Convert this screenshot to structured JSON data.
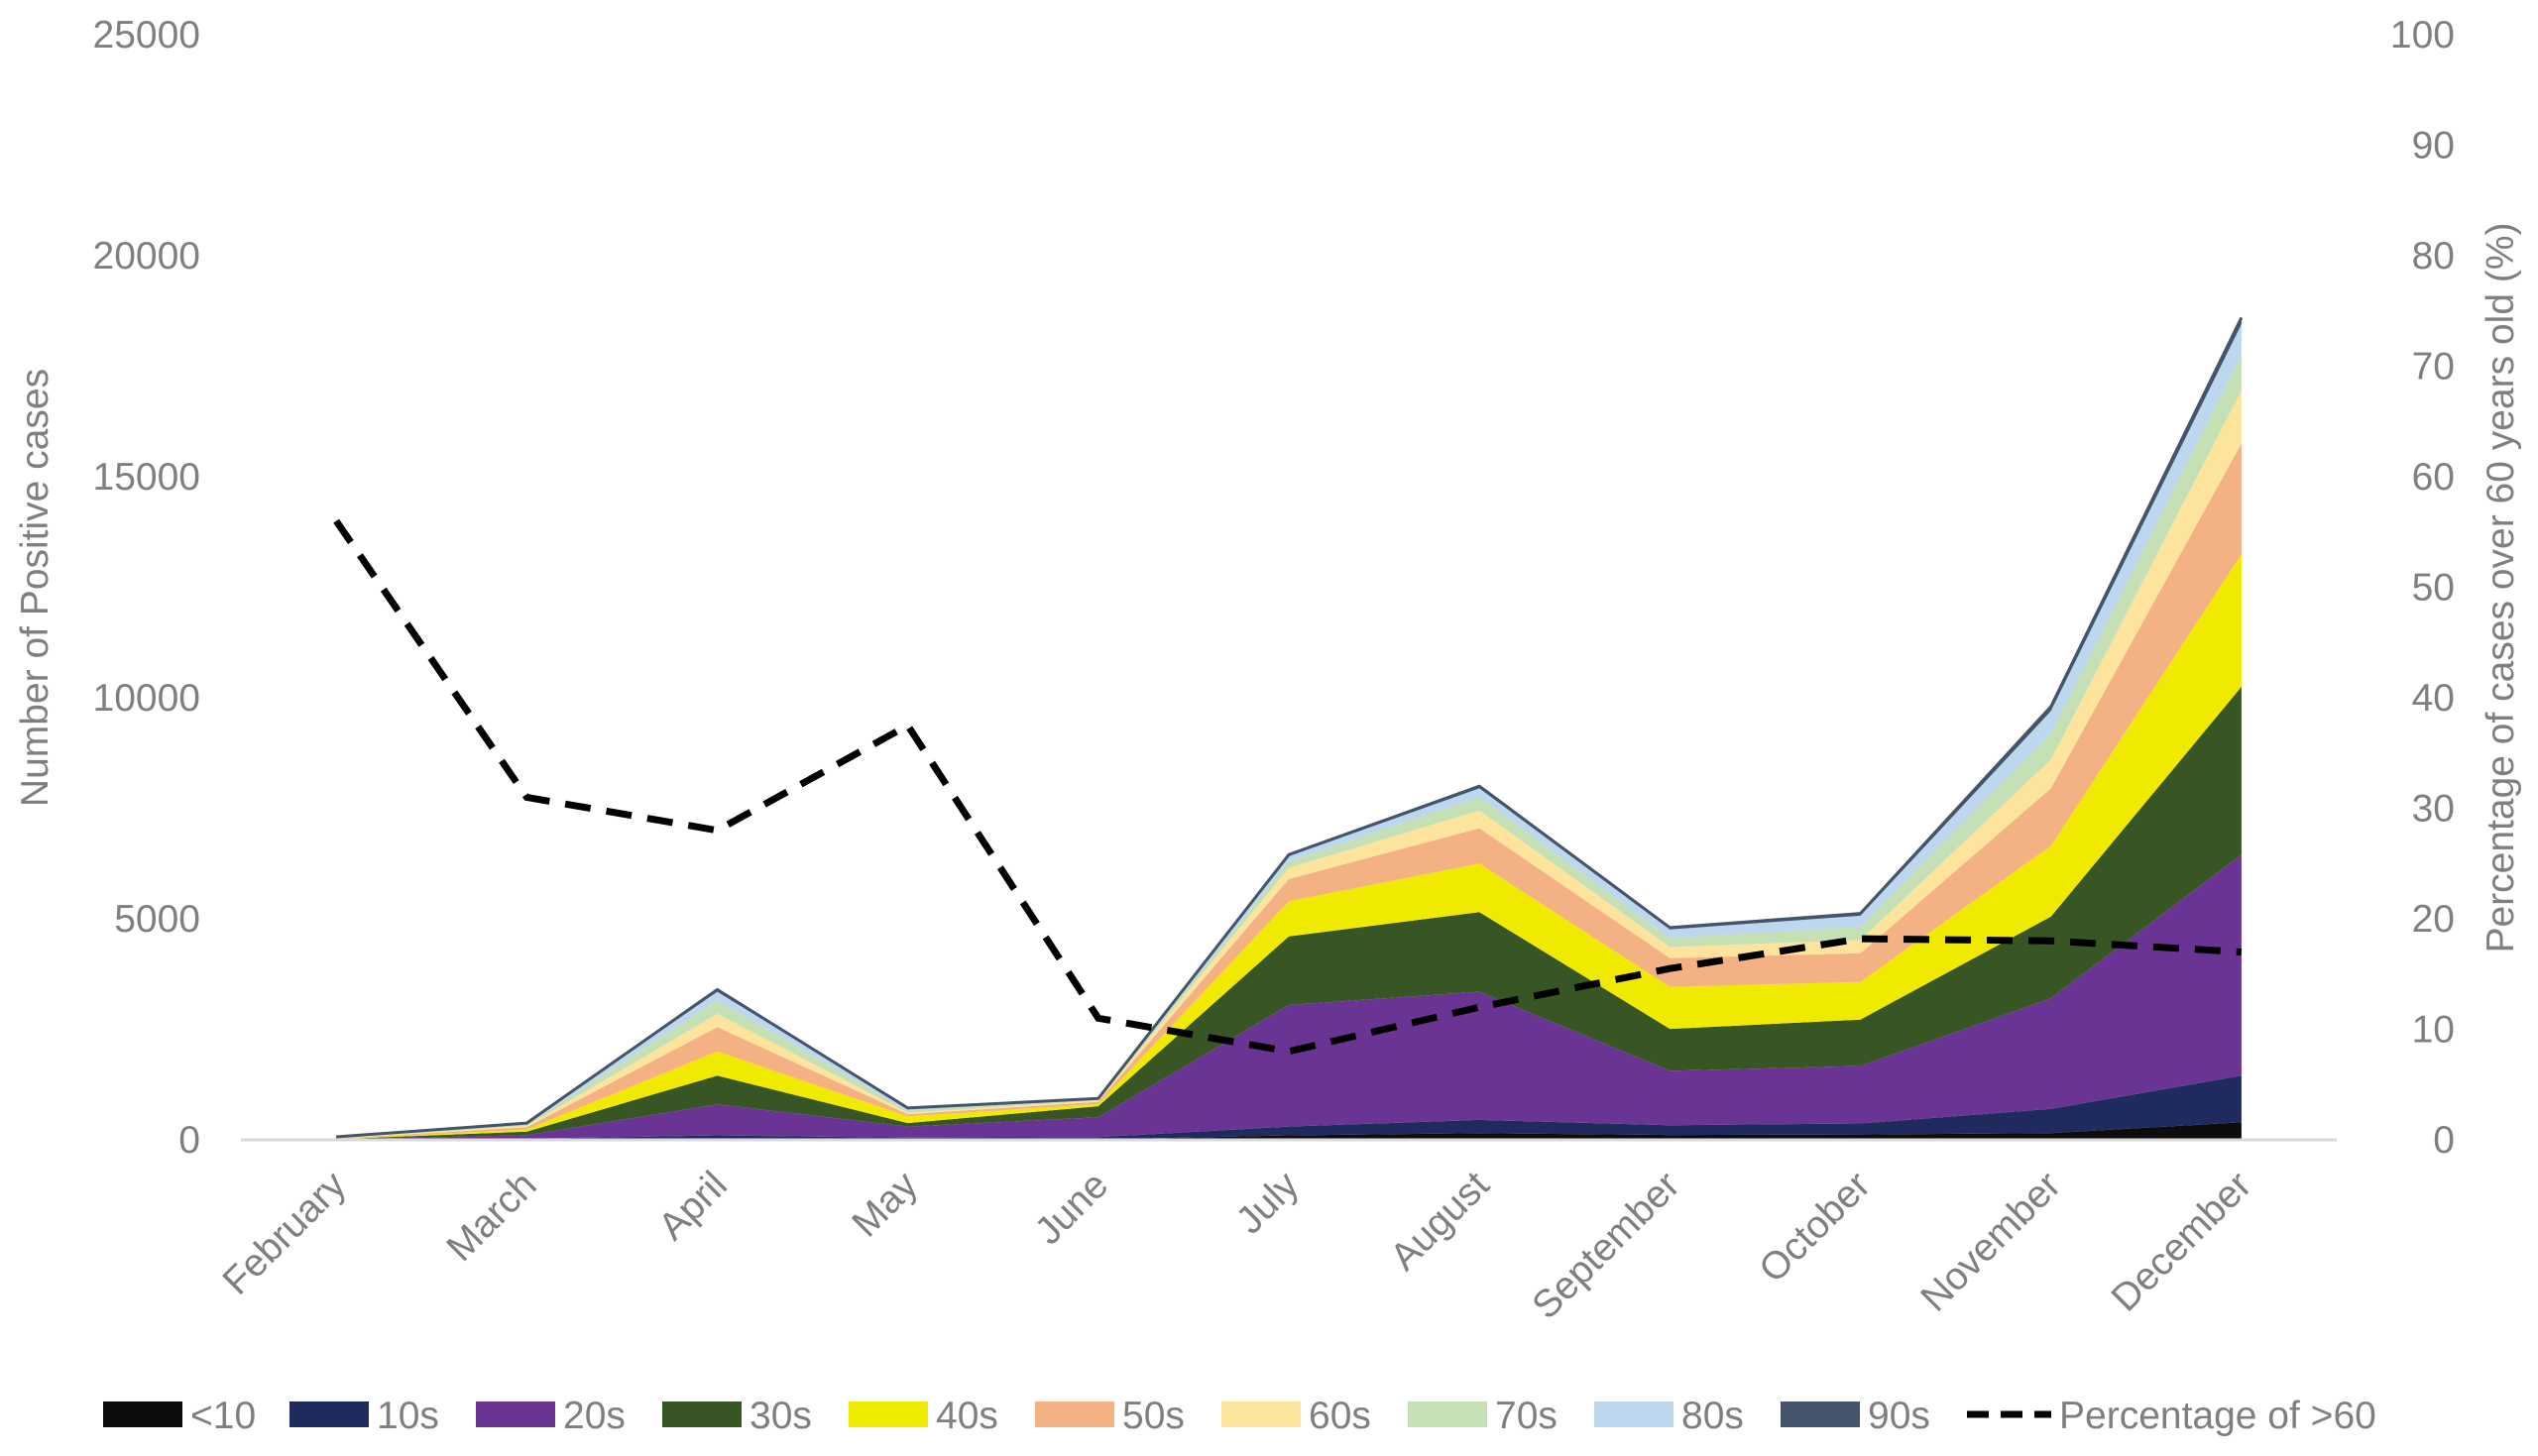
{
  "chart_data": {
    "type": "area",
    "stacked": true,
    "categories": [
      "February",
      "March",
      "April",
      "May",
      "June",
      "July",
      "August",
      "September",
      "October",
      "November",
      "December"
    ],
    "series": [
      {
        "name": "<10",
        "color": "#0d0d0d",
        "values": [
          0,
          5,
          30,
          10,
          10,
          100,
          150,
          110,
          120,
          150,
          400
        ]
      },
      {
        "name": "10s",
        "color": "#1f2a5e",
        "values": [
          5,
          20,
          70,
          40,
          50,
          200,
          300,
          220,
          250,
          550,
          1050
        ]
      },
      {
        "name": "20s",
        "color": "#6a3494",
        "values": [
          5,
          80,
          700,
          250,
          450,
          2750,
          2900,
          1230,
          1300,
          2500,
          5000
        ]
      },
      {
        "name": "30s",
        "color": "#375623",
        "values": [
          5,
          80,
          650,
          80,
          250,
          1550,
          1800,
          950,
          1050,
          1850,
          3800
        ]
      },
      {
        "name": "40s",
        "color": "#f0ea00",
        "values": [
          5,
          50,
          550,
          150,
          50,
          800,
          1100,
          950,
          850,
          1600,
          3000
        ]
      },
      {
        "name": "50s",
        "color": "#f4b183",
        "values": [
          10,
          50,
          550,
          50,
          50,
          500,
          800,
          650,
          650,
          1300,
          2500
        ]
      },
      {
        "name": "60s",
        "color": "#fde49d",
        "values": [
          10,
          30,
          300,
          30,
          30,
          250,
          400,
          250,
          300,
          650,
          1200
        ]
      },
      {
        "name": "70s",
        "color": "#c5e0b4",
        "values": [
          15,
          30,
          300,
          50,
          20,
          150,
          300,
          200,
          300,
          600,
          800
        ]
      },
      {
        "name": "80s",
        "color": "#bdd7ee",
        "values": [
          10,
          30,
          200,
          50,
          20,
          120,
          200,
          200,
          250,
          500,
          700
        ]
      },
      {
        "name": "90s",
        "color": "#44546a",
        "values": [
          2,
          5,
          50,
          10,
          5,
          30,
          50,
          40,
          50,
          100,
          150
        ]
      }
    ],
    "line_series": {
      "name": "Percentage of >60",
      "color": "#000000",
      "style": "dashed",
      "axis": "right",
      "values": [
        56,
        31,
        28,
        37.5,
        11,
        8,
        12,
        15.5,
        18.2,
        18,
        17
      ]
    },
    "xlabel": "",
    "ylabel": "Number of Positive cases",
    "ylabel_right": "Percentage of cases over 60 years old (%)",
    "ylim": [
      0,
      25000
    ],
    "ylim_right": [
      0,
      100
    ],
    "yticks": [
      "0",
      "5000",
      "10000",
      "15000",
      "20000",
      "25000"
    ],
    "yticks_right": [
      "0",
      "10",
      "20",
      "30",
      "40",
      "50",
      "60",
      "70",
      "80",
      "90",
      "100"
    ],
    "grid": false,
    "legend_position": "bottom",
    "legend": [
      "<10",
      "10s",
      "20s",
      "30s",
      "40s",
      "50s",
      "60s",
      "70s",
      "80s",
      "90s",
      "Percentage of >60"
    ]
  }
}
